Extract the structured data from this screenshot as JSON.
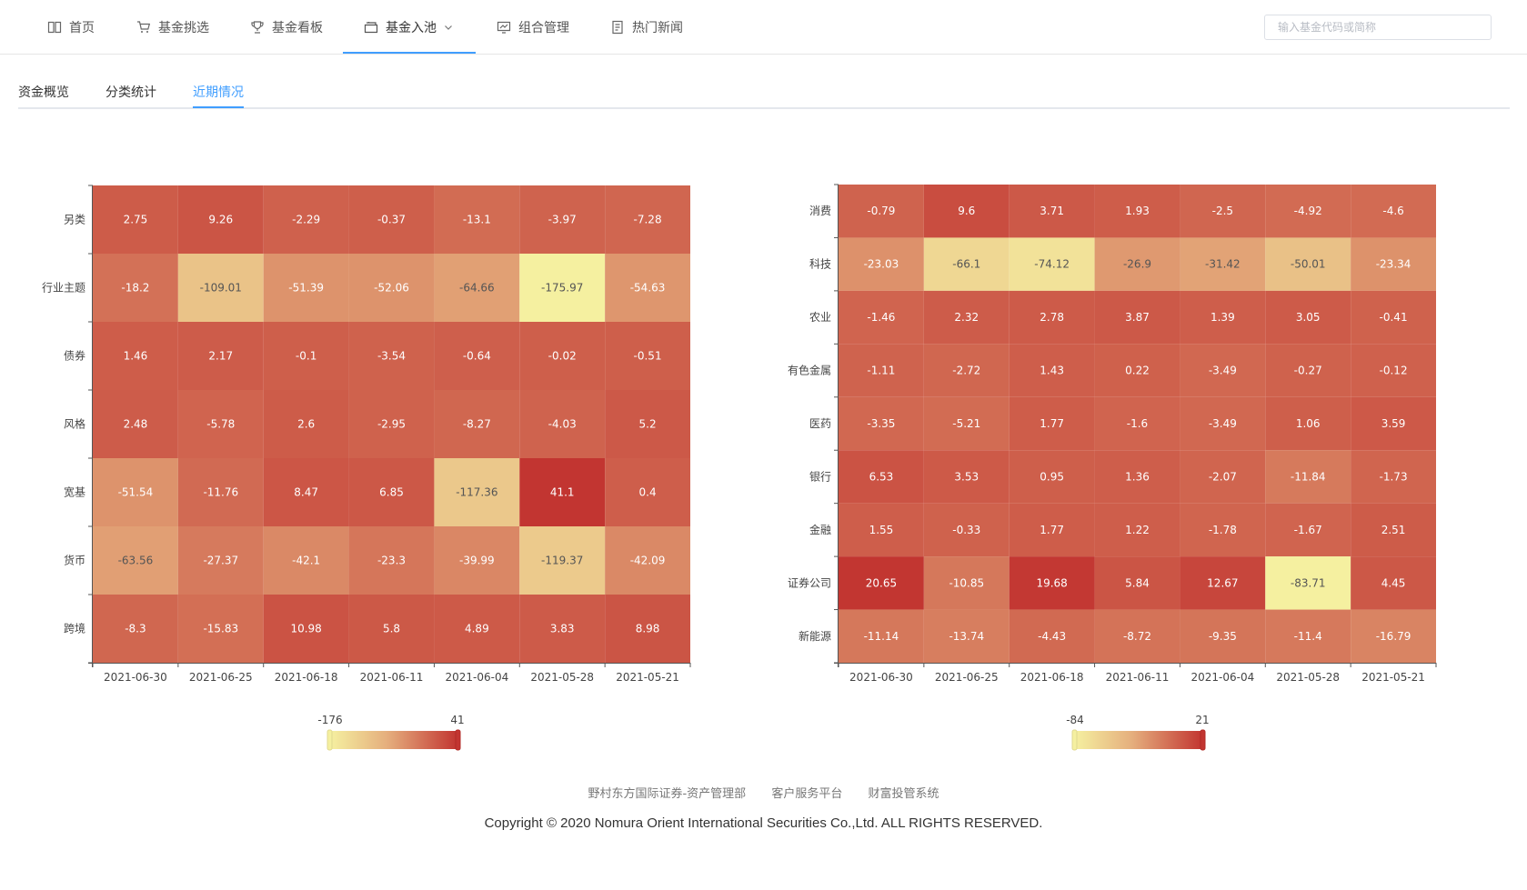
{
  "nav": {
    "items": [
      {
        "label": "首页",
        "icon": "book-icon"
      },
      {
        "label": "基金挑选",
        "icon": "cart-icon"
      },
      {
        "label": "基金看板",
        "icon": "trophy-icon"
      },
      {
        "label": "基金入池",
        "icon": "box-icon"
      },
      {
        "label": "组合管理",
        "icon": "chart-icon"
      },
      {
        "label": "热门新闻",
        "icon": "news-icon"
      }
    ],
    "active_index": 3
  },
  "search": {
    "placeholder": "输入基金代码或简称"
  },
  "tabs": [
    {
      "label": "资金概览"
    },
    {
      "label": "分类统计"
    },
    {
      "label": "近期情况"
    }
  ],
  "active_tab": 2,
  "chart_data": [
    {
      "type": "heatmap",
      "x": [
        "2021-06-30",
        "2021-06-25",
        "2021-06-18",
        "2021-06-11",
        "2021-06-04",
        "2021-05-28",
        "2021-05-21"
      ],
      "y": [
        "另类",
        "行业主题",
        "债券",
        "风格",
        "宽基",
        "货币",
        "跨境"
      ],
      "values": [
        [
          2.75,
          9.26,
          -2.29,
          -0.37,
          -13.1,
          -3.97,
          -7.28
        ],
        [
          -18.2,
          -109.01,
          -51.39,
          -52.06,
          -64.66,
          -175.97,
          -54.63
        ],
        [
          1.46,
          2.17,
          -0.1,
          -3.54,
          -0.64,
          -0.02,
          -0.51
        ],
        [
          2.48,
          -5.78,
          2.6,
          -2.95,
          -8.27,
          -4.03,
          5.2
        ],
        [
          -51.54,
          -11.76,
          8.47,
          6.85,
          -117.36,
          41.1,
          0.4
        ],
        [
          -63.56,
          -27.37,
          -42.1,
          -23.3,
          -39.99,
          -119.37,
          -42.09
        ],
        [
          -8.3,
          -15.83,
          10.98,
          5.8,
          4.89,
          3.83,
          8.98
        ]
      ],
      "visualmap": {
        "min": -176,
        "max": 41,
        "min_label": "-176",
        "max_label": "41",
        "color_low": "#f5f0a0",
        "color_high": "#c23531"
      }
    },
    {
      "type": "heatmap",
      "x": [
        "2021-06-30",
        "2021-06-25",
        "2021-06-18",
        "2021-06-11",
        "2021-06-04",
        "2021-05-28",
        "2021-05-21"
      ],
      "y": [
        "消费",
        "科技",
        "农业",
        "有色金属",
        "医药",
        "银行",
        "金融",
        "证券公司",
        "新能源"
      ],
      "values": [
        [
          -0.79,
          9.6,
          3.71,
          1.93,
          -2.5,
          -4.92,
          -4.6
        ],
        [
          -23.03,
          -66.1,
          -74.12,
          -26.9,
          -31.42,
          -50.01,
          -23.34
        ],
        [
          -1.46,
          2.32,
          2.78,
          3.87,
          1.39,
          3.05,
          -0.41
        ],
        [
          -1.11,
          -2.72,
          1.43,
          0.22,
          -3.49,
          -0.27,
          -0.12
        ],
        [
          -3.35,
          -5.21,
          1.77,
          -1.6,
          -3.49,
          1.06,
          3.59
        ],
        [
          6.53,
          3.53,
          0.95,
          1.36,
          -2.07,
          -11.84,
          -1.73
        ],
        [
          1.55,
          -0.33,
          1.77,
          1.22,
          -1.78,
          -1.67,
          2.51
        ],
        [
          20.65,
          -10.85,
          19.68,
          5.84,
          12.67,
          -83.71,
          4.45
        ],
        [
          -11.14,
          -13.74,
          -4.43,
          -8.72,
          -9.35,
          -11.4,
          -16.79
        ]
      ],
      "visualmap": {
        "min": -84,
        "max": 21,
        "min_label": "-84",
        "max_label": "21",
        "color_low": "#f5f0a0",
        "color_high": "#c23531"
      }
    }
  ],
  "footer": {
    "links": [
      "野村东方国际证券-资产管理部",
      "客户服务平台",
      "财富投管系统"
    ],
    "copyright": "Copyright © 2020 Nomura Orient International Securities Co.,Ltd. ALL RIGHTS RESERVED."
  }
}
